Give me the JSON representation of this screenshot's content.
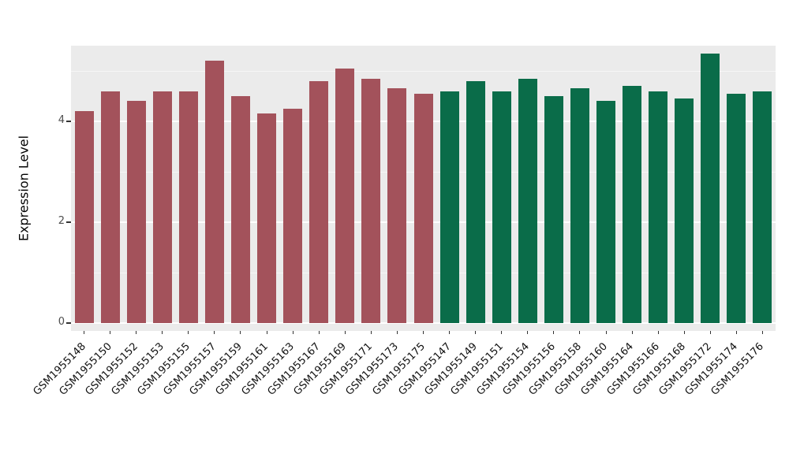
{
  "chart_data": {
    "type": "bar",
    "title": "",
    "xlabel": "",
    "ylabel": "Expression Level",
    "ylim": [
      0,
      5.5
    ],
    "yticks": [
      0,
      2,
      4
    ],
    "yticks_minor": [
      1,
      3,
      5
    ],
    "grid": true,
    "legend": "none",
    "panel_background": "#EBEBEB",
    "categories": [
      "GSM1955148",
      "GSM1955150",
      "GSM1955152",
      "GSM1955153",
      "GSM1955155",
      "GSM1955157",
      "GSM1955159",
      "GSM1955161",
      "GSM1955163",
      "GSM1955167",
      "GSM1955169",
      "GSM1955171",
      "GSM1955173",
      "GSM1955175",
      "GSM1955147",
      "GSM1955149",
      "GSM1955151",
      "GSM1955154",
      "GSM1955156",
      "GSM1955158",
      "GSM1955160",
      "GSM1955164",
      "GSM1955166",
      "GSM1955168",
      "GSM1955172",
      "GSM1955174",
      "GSM1955176"
    ],
    "values": [
      4.2,
      4.6,
      4.4,
      4.6,
      4.6,
      5.2,
      4.5,
      4.15,
      4.25,
      4.8,
      5.05,
      4.85,
      4.65,
      4.55,
      4.6,
      4.8,
      4.6,
      4.85,
      4.5,
      4.65,
      4.4,
      4.7,
      4.6,
      4.45,
      5.35,
      4.55,
      4.6
    ],
    "color_groups": [
      {
        "color": "#A3525B",
        "count": 14
      },
      {
        "color": "#0A6C49",
        "count": 13
      }
    ]
  }
}
